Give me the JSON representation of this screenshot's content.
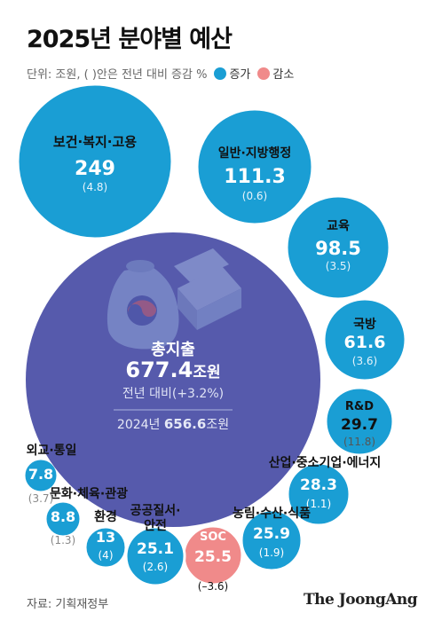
{
  "header": {
    "title": "2025년 분야별 예산",
    "unit_note": "단위: 조원, ( )안은 전년 대비 증감 %",
    "legend": [
      {
        "label": "증가",
        "color": "#1a9ed4"
      },
      {
        "label": "감소",
        "color": "#f08a8a"
      }
    ]
  },
  "chart_data": {
    "type": "bubble",
    "unit": "조원",
    "total": {
      "label": "총지출",
      "value": "677.4",
      "unit": "조원",
      "change_text": "전년 대비(+3.2%)",
      "prev_year_label": "2024년",
      "prev_value": "656.6",
      "prev_unit": "조원"
    },
    "items": [
      {
        "label": "보건·복지·고용",
        "value": "249",
        "change": "(4.8)",
        "status": "증가"
      },
      {
        "label": "일반·지방행정",
        "value": "111.3",
        "change": "(0.6)",
        "status": "증가"
      },
      {
        "label": "교육",
        "value": "98.5",
        "change": "(3.5)",
        "status": "증가"
      },
      {
        "label": "국방",
        "value": "61.6",
        "change": "(3.6)",
        "status": "증가"
      },
      {
        "label": "R&D",
        "value": "29.7",
        "change": "(11.8)",
        "status": "증가"
      },
      {
        "label": "산업·중소기업·에너지",
        "value": "28.3",
        "change": "(1.1)",
        "status": "증가"
      },
      {
        "label": "농림·수산·식품",
        "value": "25.9",
        "change": "(1.9)",
        "status": "증가"
      },
      {
        "label": "SOC",
        "value": "25.5",
        "change": "(–3.6)",
        "status": "감소"
      },
      {
        "label": "공공질서·안전",
        "value": "25.1",
        "change": "(2.6)",
        "status": "증가"
      },
      {
        "label": "환경",
        "value": "13",
        "change": "(4)",
        "status": "증가"
      },
      {
        "label": "문화·체육·관광",
        "value": "8.8",
        "change": "(1.3)",
        "status": "증가"
      },
      {
        "label": "외교·통일",
        "value": "7.8",
        "change": "(3.7)",
        "status": "증가"
      }
    ],
    "colors": {
      "increase": "#1a9ed4",
      "decrease": "#f08a8a",
      "total": "#3a3f9e"
    }
  },
  "footer": {
    "source": "자료: 기획재정부",
    "brand": "The JoongAng"
  }
}
